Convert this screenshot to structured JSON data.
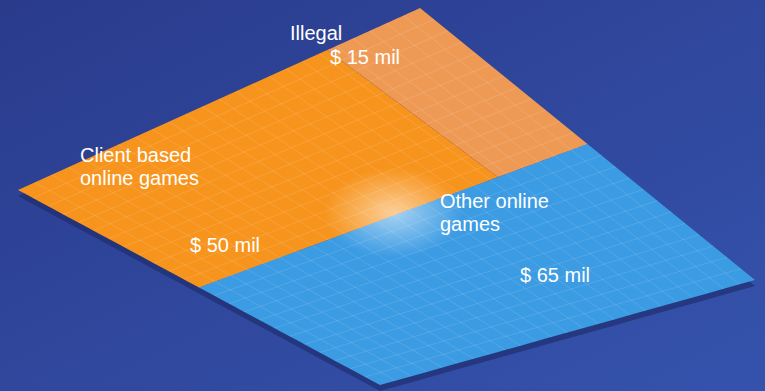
{
  "chart_data": {
    "type": "treemap",
    "categories": [
      "Illegal",
      "Client based online games",
      "Other online games"
    ],
    "values": [
      15,
      50,
      65
    ],
    "value_labels": [
      "$ 15 mil",
      "$ 50 mil",
      "$ 65 mil"
    ],
    "colors": [
      "#ee9a55",
      "#f7941d",
      "#3b9be3"
    ],
    "data_labels": true
  }
}
